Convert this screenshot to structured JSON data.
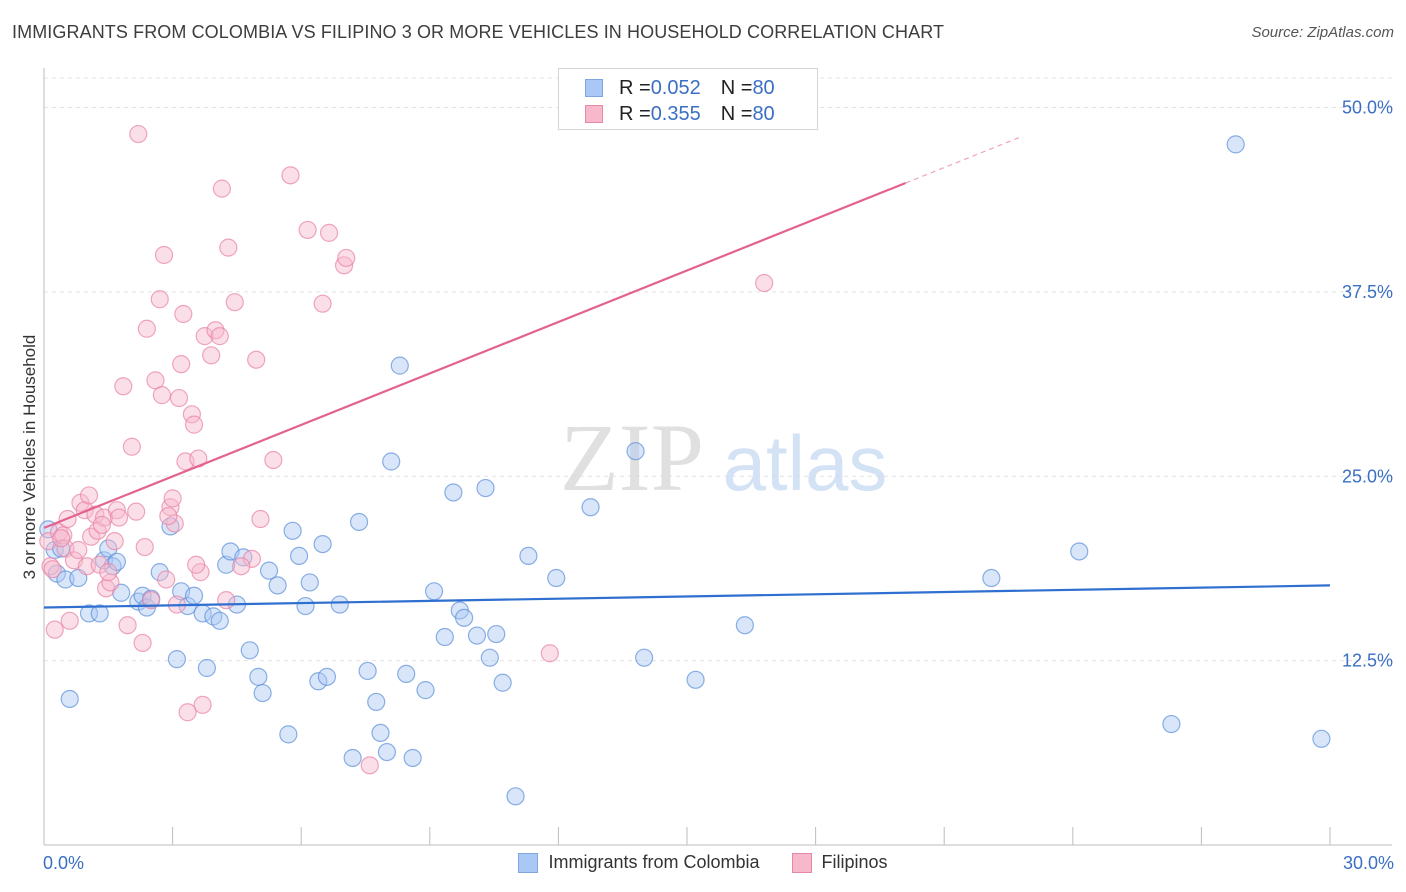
{
  "header": {
    "title": "IMMIGRANTS FROM COLOMBIA VS FILIPINO 3 OR MORE VEHICLES IN HOUSEHOLD CORRELATION CHART",
    "source": "Source: ZipAtlas.com"
  },
  "watermark": {
    "zip": "ZIP",
    "atlas": "atlas"
  },
  "stats": [
    {
      "r_label": "R = ",
      "r_value": "0.052",
      "n_label": "N = ",
      "n_value": "80",
      "color": "#aac8f5"
    },
    {
      "r_label": "R = ",
      "r_value": "0.355",
      "n_label": "N = ",
      "n_value": "80",
      "color": "#f7b8cb"
    }
  ],
  "legend": [
    {
      "label": "Immigrants from Colombia",
      "color": "#aac8f5"
    },
    {
      "label": "Filipinos",
      "color": "#f7b8cb"
    }
  ],
  "x_axis_labels": {
    "min": "0.0%",
    "max": "30.0%"
  },
  "chart_data": {
    "type": "scatter",
    "title": "IMMIGRANTS FROM COLOMBIA VS FILIPINO 3 OR MORE VEHICLES IN HOUSEHOLD CORRELATION CHART",
    "xlabel": "",
    "ylabel": "3 or more Vehicles in Household",
    "xlim": [
      0,
      30
    ],
    "ylim": [
      0,
      52
    ],
    "y_ticks": [
      12.5,
      25.0,
      37.5,
      50.0
    ],
    "y_tick_labels": [
      "12.5%",
      "25.0%",
      "37.5%",
      "50.0%"
    ],
    "grid": true,
    "legend_position": "bottom",
    "series": [
      {
        "name": "Immigrants from Colombia",
        "color": "#5b8fd9",
        "fill": "#aac8f5",
        "trend": {
          "x": [
            0,
            30
          ],
          "y": [
            16.1,
            17.6
          ]
        },
        "points": [
          [
            0.1,
            21.4
          ],
          [
            0.25,
            20.0
          ],
          [
            0.3,
            18.4
          ],
          [
            0.4,
            20.1
          ],
          [
            0.5,
            18.0
          ],
          [
            0.6,
            9.9
          ],
          [
            0.8,
            18.1
          ],
          [
            1.05,
            15.7
          ],
          [
            1.3,
            15.7
          ],
          [
            1.4,
            19.3
          ],
          [
            1.5,
            20.1
          ],
          [
            1.6,
            18.9
          ],
          [
            1.7,
            19.2
          ],
          [
            1.8,
            17.1
          ],
          [
            2.2,
            16.5
          ],
          [
            2.3,
            16.9
          ],
          [
            2.4,
            16.1
          ],
          [
            2.5,
            16.7
          ],
          [
            2.7,
            18.5
          ],
          [
            2.95,
            21.6
          ],
          [
            3.1,
            12.6
          ],
          [
            3.2,
            17.2
          ],
          [
            3.35,
            16.2
          ],
          [
            3.5,
            16.9
          ],
          [
            3.7,
            15.7
          ],
          [
            3.8,
            12.0
          ],
          [
            3.95,
            15.5
          ],
          [
            4.1,
            15.2
          ],
          [
            4.25,
            19.0
          ],
          [
            4.35,
            19.9
          ],
          [
            4.5,
            16.3
          ],
          [
            4.65,
            19.5
          ],
          [
            4.8,
            13.2
          ],
          [
            5.0,
            11.4
          ],
          [
            5.1,
            10.3
          ],
          [
            5.25,
            18.6
          ],
          [
            5.45,
            17.6
          ],
          [
            5.7,
            7.5
          ],
          [
            5.8,
            21.3
          ],
          [
            5.95,
            19.6
          ],
          [
            6.1,
            16.2
          ],
          [
            6.2,
            17.8
          ],
          [
            6.4,
            11.1
          ],
          [
            6.5,
            20.4
          ],
          [
            6.6,
            11.4
          ],
          [
            6.9,
            16.3
          ],
          [
            7.2,
            5.9
          ],
          [
            7.35,
            21.9
          ],
          [
            7.55,
            11.8
          ],
          [
            7.75,
            9.7
          ],
          [
            7.85,
            7.6
          ],
          [
            8.0,
            6.3
          ],
          [
            8.1,
            26.0
          ],
          [
            8.3,
            32.5
          ],
          [
            8.45,
            11.6
          ],
          [
            8.6,
            5.9
          ],
          [
            8.9,
            10.5
          ],
          [
            9.1,
            17.2
          ],
          [
            9.35,
            14.1
          ],
          [
            9.55,
            23.9
          ],
          [
            9.7,
            15.9
          ],
          [
            9.8,
            15.4
          ],
          [
            10.1,
            14.2
          ],
          [
            10.3,
            24.2
          ],
          [
            10.4,
            12.7
          ],
          [
            10.55,
            14.3
          ],
          [
            10.7,
            11.0
          ],
          [
            11.0,
            3.3
          ],
          [
            11.3,
            19.6
          ],
          [
            11.95,
            18.1
          ],
          [
            12.75,
            22.9
          ],
          [
            13.8,
            26.7
          ],
          [
            14.0,
            12.7
          ],
          [
            15.2,
            11.2
          ],
          [
            16.35,
            14.9
          ],
          [
            22.1,
            18.1
          ],
          [
            24.15,
            19.9
          ],
          [
            26.3,
            8.2
          ],
          [
            27.8,
            47.5
          ],
          [
            29.8,
            7.2
          ]
        ]
      },
      {
        "name": "Filipinos",
        "color": "#e882a4",
        "fill": "#f7b8cb",
        "trend": {
          "x": [
            0,
            30
          ],
          "y": [
            21.5,
            56.4
          ],
          "solid_until_x": 20.1
        },
        "points": [
          [
            0.1,
            20.6
          ],
          [
            0.15,
            18.9
          ],
          [
            0.2,
            18.7
          ],
          [
            0.25,
            14.6
          ],
          [
            0.35,
            21.2
          ],
          [
            0.45,
            21.0
          ],
          [
            0.5,
            20.1
          ],
          [
            0.55,
            22.1
          ],
          [
            0.6,
            15.2
          ],
          [
            0.7,
            19.3
          ],
          [
            0.8,
            20.0
          ],
          [
            0.85,
            23.2
          ],
          [
            0.95,
            22.7
          ],
          [
            1.0,
            18.9
          ],
          [
            1.05,
            23.7
          ],
          [
            1.1,
            20.9
          ],
          [
            1.2,
            22.4
          ],
          [
            1.25,
            21.3
          ],
          [
            1.3,
            19.0
          ],
          [
            1.4,
            22.2
          ],
          [
            1.45,
            17.4
          ],
          [
            1.55,
            17.8
          ],
          [
            1.65,
            20.6
          ],
          [
            1.7,
            22.7
          ],
          [
            1.75,
            22.2
          ],
          [
            1.85,
            31.1
          ],
          [
            1.95,
            14.9
          ],
          [
            2.05,
            27.0
          ],
          [
            2.15,
            22.6
          ],
          [
            2.2,
            48.2
          ],
          [
            2.3,
            13.7
          ],
          [
            2.4,
            35.0
          ],
          [
            2.5,
            16.6
          ],
          [
            2.6,
            31.5
          ],
          [
            2.7,
            37.0
          ],
          [
            2.75,
            30.5
          ],
          [
            2.8,
            40.0
          ],
          [
            2.85,
            18.0
          ],
          [
            2.95,
            22.9
          ],
          [
            3.0,
            23.5
          ],
          [
            3.05,
            21.8
          ],
          [
            3.1,
            16.3
          ],
          [
            3.15,
            30.3
          ],
          [
            3.2,
            32.6
          ],
          [
            3.25,
            36.0
          ],
          [
            3.3,
            26.0
          ],
          [
            3.35,
            9.0
          ],
          [
            3.45,
            29.2
          ],
          [
            3.5,
            28.5
          ],
          [
            3.6,
            26.2
          ],
          [
            3.65,
            18.5
          ],
          [
            3.7,
            9.5
          ],
          [
            3.75,
            34.5
          ],
          [
            3.9,
            33.2
          ],
          [
            4.0,
            34.9
          ],
          [
            4.1,
            34.5
          ],
          [
            4.15,
            44.5
          ],
          [
            4.25,
            16.6
          ],
          [
            4.3,
            40.5
          ],
          [
            4.45,
            36.8
          ],
          [
            4.85,
            19.4
          ],
          [
            4.95,
            32.9
          ],
          [
            5.05,
            22.1
          ],
          [
            5.35,
            26.1
          ],
          [
            5.75,
            45.4
          ],
          [
            6.15,
            41.7
          ],
          [
            6.5,
            36.7
          ],
          [
            6.65,
            41.5
          ],
          [
            7.0,
            39.3
          ],
          [
            7.05,
            39.8
          ],
          [
            7.6,
            5.4
          ],
          [
            11.8,
            13.0
          ],
          [
            16.8,
            38.1
          ],
          [
            1.5,
            18.5
          ],
          [
            0.4,
            20.8
          ],
          [
            2.9,
            22.3
          ],
          [
            4.6,
            18.9
          ],
          [
            3.55,
            19.0
          ],
          [
            2.35,
            20.2
          ],
          [
            1.35,
            21.7
          ]
        ]
      }
    ]
  }
}
